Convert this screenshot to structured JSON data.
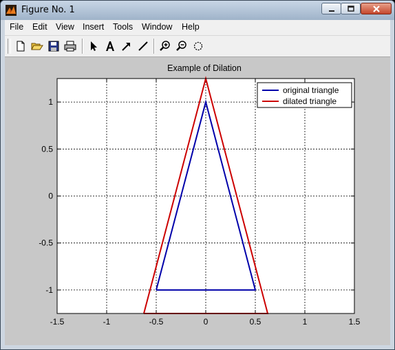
{
  "window": {
    "title": "Figure No. 1"
  },
  "menu": [
    {
      "label": "File"
    },
    {
      "label": "Edit"
    },
    {
      "label": "View"
    },
    {
      "label": "Insert"
    },
    {
      "label": "Tools"
    },
    {
      "label": "Window"
    },
    {
      "label": "Help"
    }
  ],
  "toolbar": {
    "buttons": [
      "new-file-icon",
      "open-folder-icon",
      "save-icon",
      "print-icon",
      "select-arrow-icon",
      "text-A-icon",
      "arrow-icon",
      "line-icon",
      "zoom-in-icon",
      "zoom-out-icon",
      "rotate-icon"
    ]
  },
  "chart_data": {
    "type": "line",
    "title": "Example of Dilation",
    "xlabel": "",
    "ylabel": "",
    "xlim": [
      -1.5,
      1.5
    ],
    "ylim": [
      -1.25,
      1.25
    ],
    "xticks": [
      -1.5,
      -1,
      -0.5,
      0,
      0.5,
      1,
      1.5
    ],
    "xtick_labels": [
      "-1.5",
      "-1",
      "-0.5",
      "0",
      "0.5",
      "1",
      "1.5"
    ],
    "yticks": [
      -1,
      -0.5,
      0,
      0.5,
      1
    ],
    "ytick_labels": [
      "-1",
      "-0.5",
      "0",
      "0.5",
      "1"
    ],
    "grid": true,
    "legend_position": "top-right",
    "series": [
      {
        "name": "original triangle",
        "color": "#0000aa",
        "x": [
          -0.5,
          0,
          0.5,
          -0.5
        ],
        "y": [
          -1,
          1,
          -1,
          -1
        ]
      },
      {
        "name": "dilated triangle",
        "color": "#cc0000",
        "x": [
          -0.625,
          0,
          0.625,
          -0.625
        ],
        "y": [
          -1.25,
          1.25,
          -1.25,
          -1.25
        ]
      }
    ]
  }
}
